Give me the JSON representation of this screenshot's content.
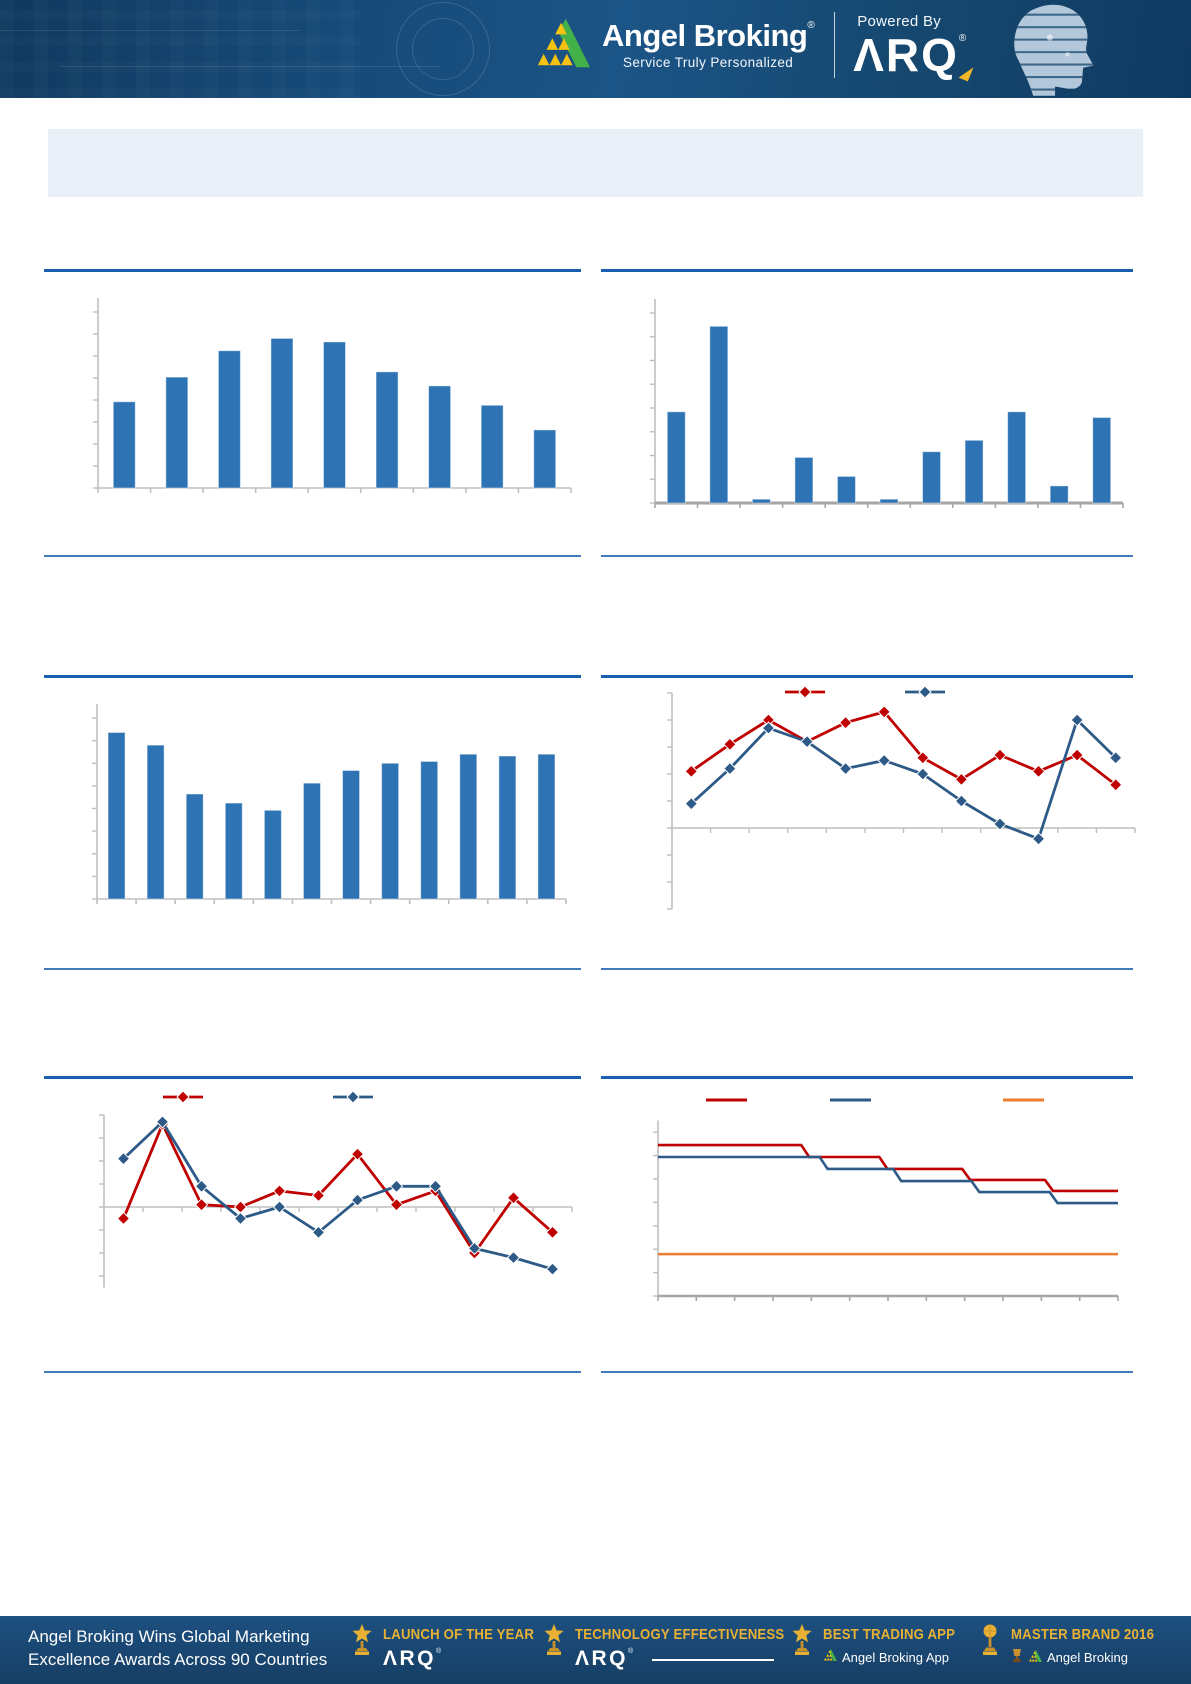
{
  "header": {
    "brand": "Angel Broking",
    "brand_registered": "®",
    "tagline": "Service Truly Personalized",
    "powered_by": "Powered By",
    "arq_logo_text": "ΛRQ",
    "arq_registered": "®",
    "colors": {
      "banner_blue": "#16486F",
      "logo_yellow": "#F5C211",
      "logo_green": "#43B049"
    }
  },
  "title_banner": {
    "visible": true,
    "text": ""
  },
  "colors": {
    "bar_blue": "#2E74B5",
    "line_red": "#C00000",
    "line_dark_blue": "#2D5A87",
    "line_orange": "#ED7D31",
    "axis_gray": "#BFBFBF",
    "axis_gray_thick": "#A6A6A6",
    "section_rule_top": "#185FAF",
    "section_rule_bottom": "#4379BD"
  },
  "chart_data": [
    {
      "id": "top-left-bar",
      "type": "bar",
      "title": "",
      "xlabel": "",
      "ylabel": "",
      "axis_tick_labels_visible": false,
      "categories": [
        "",
        "",
        "",
        "",
        "",
        "",
        "",
        "",
        ""
      ],
      "values": [
        49,
        63,
        78,
        85,
        83,
        66,
        58,
        47,
        33
      ],
      "ylim": [
        0,
        100
      ],
      "bar_color": "#2E74B5",
      "grid": false,
      "legend": {
        "visible": false
      }
    },
    {
      "id": "top-right-bar",
      "type": "bar",
      "title": "",
      "xlabel": "",
      "ylabel": "",
      "axis_tick_labels_visible": false,
      "categories": [
        "",
        "",
        "",
        "",
        "",
        "",
        "",
        "",
        "",
        "",
        ""
      ],
      "values": [
        48,
        93,
        2,
        24,
        14,
        2,
        27,
        33,
        48,
        9,
        45
      ],
      "ylim": [
        0,
        100
      ],
      "bar_color": "#2E74B5",
      "grid": false,
      "legend": {
        "visible": false
      }
    },
    {
      "id": "middle-left-bar",
      "type": "bar",
      "title": "",
      "xlabel": "",
      "ylabel": "",
      "axis_tick_labels_visible": false,
      "categories": [
        "",
        "",
        "",
        "",
        "",
        "",
        "",
        "",
        "",
        "",
        "",
        ""
      ],
      "values": [
        92,
        85,
        58,
        53,
        49,
        64,
        71,
        75,
        76,
        80,
        79,
        80
      ],
      "ylim": [
        0,
        100
      ],
      "bar_color": "#2E74B5",
      "grid": false,
      "legend": {
        "visible": false
      }
    },
    {
      "id": "middle-right-line",
      "type": "line",
      "title": "",
      "xlabel": "",
      "ylabel": "",
      "axis_tick_labels_visible": false,
      "marker": "diamond",
      "zero_line": true,
      "x": [
        1,
        2,
        3,
        4,
        5,
        6,
        7,
        8,
        9,
        10,
        11,
        12
      ],
      "series": [
        {
          "name": "series-red",
          "color": "#C00000",
          "values": [
            2.1,
            3.1,
            4.0,
            3.2,
            3.9,
            4.3,
            2.6,
            1.8,
            2.7,
            2.1,
            2.7,
            1.6
          ]
        },
        {
          "name": "series-blue",
          "color": "#2D5A87",
          "values": [
            0.9,
            2.2,
            3.7,
            3.2,
            2.2,
            2.5,
            2.0,
            1.0,
            0.15,
            -0.4,
            4.0,
            2.6
          ]
        }
      ],
      "ylim": [
        -3,
        5
      ],
      "grid": false,
      "legend": {
        "visible": true,
        "position": "top",
        "labels_visible": false
      }
    },
    {
      "id": "bottom-left-line",
      "type": "line",
      "title": "",
      "xlabel": "",
      "ylabel": "",
      "axis_tick_labels_visible": false,
      "marker": "diamond",
      "zero_line": true,
      "x": [
        1,
        2,
        3,
        4,
        5,
        6,
        7,
        8,
        9,
        10,
        11,
        12
      ],
      "series": [
        {
          "name": "series-red",
          "color": "#C00000",
          "values": [
            -0.5,
            3.6,
            0.1,
            0.0,
            0.7,
            0.5,
            2.3,
            0.1,
            0.7,
            -2.0,
            0.4,
            -1.1
          ]
        },
        {
          "name": "series-blue",
          "color": "#2D5A87",
          "values": [
            2.1,
            3.7,
            0.9,
            -0.5,
            0.0,
            -1.1,
            0.3,
            0.9,
            0.9,
            -1.8,
            -2.2,
            -2.7
          ]
        }
      ],
      "ylim": [
        -3.5,
        4
      ],
      "grid": false,
      "legend": {
        "visible": true,
        "position": "top",
        "labels_visible": false
      }
    },
    {
      "id": "bottom-right-step",
      "type": "step",
      "title": "",
      "xlabel": "",
      "ylabel": "",
      "axis_tick_labels_visible": false,
      "series": [
        {
          "name": "step-red",
          "color": "#C00000",
          "levels": [
            6.45,
            5.94,
            5.43,
            4.96,
            4.49
          ],
          "breaks": [
            0,
            0.32,
            0.49,
            0.67,
            0.85,
            1
          ]
        },
        {
          "name": "step-blue",
          "color": "#2D5A87",
          "levels": [
            5.94,
            5.43,
            4.91,
            4.44,
            3.97
          ],
          "breaks": [
            0,
            0.36,
            0.52,
            0.69,
            0.86,
            1
          ]
        },
        {
          "name": "flat-orange",
          "color": "#ED7D31",
          "levels": [
            1.79
          ],
          "breaks": [
            0,
            1
          ]
        }
      ],
      "ylim": [
        0,
        7.5
      ],
      "grid": false,
      "legend": {
        "visible": true,
        "position": "top",
        "labels_visible": false
      }
    }
  ],
  "footer": {
    "headline_line1": "Angel Broking Wins Global Marketing",
    "headline_line2": "Excellence Awards Across 90 Countries",
    "awards": [
      {
        "title": "LAUNCH OF THE YEAR",
        "subtitle": "ΛRQ",
        "subtitle_registered": "®"
      },
      {
        "title": "TECHNOLOGY EFFECTIVENESS",
        "subtitle": "ΛRQ",
        "subtitle_registered": "®"
      },
      {
        "title": "BEST TRADING APP",
        "subtitle": "Angel Broking App"
      },
      {
        "title": "MASTER BRAND 2016",
        "subtitle": "Angel Broking"
      }
    ],
    "colors": {
      "gold": "#E8B133",
      "bar_bg": "#1B4A75"
    }
  }
}
